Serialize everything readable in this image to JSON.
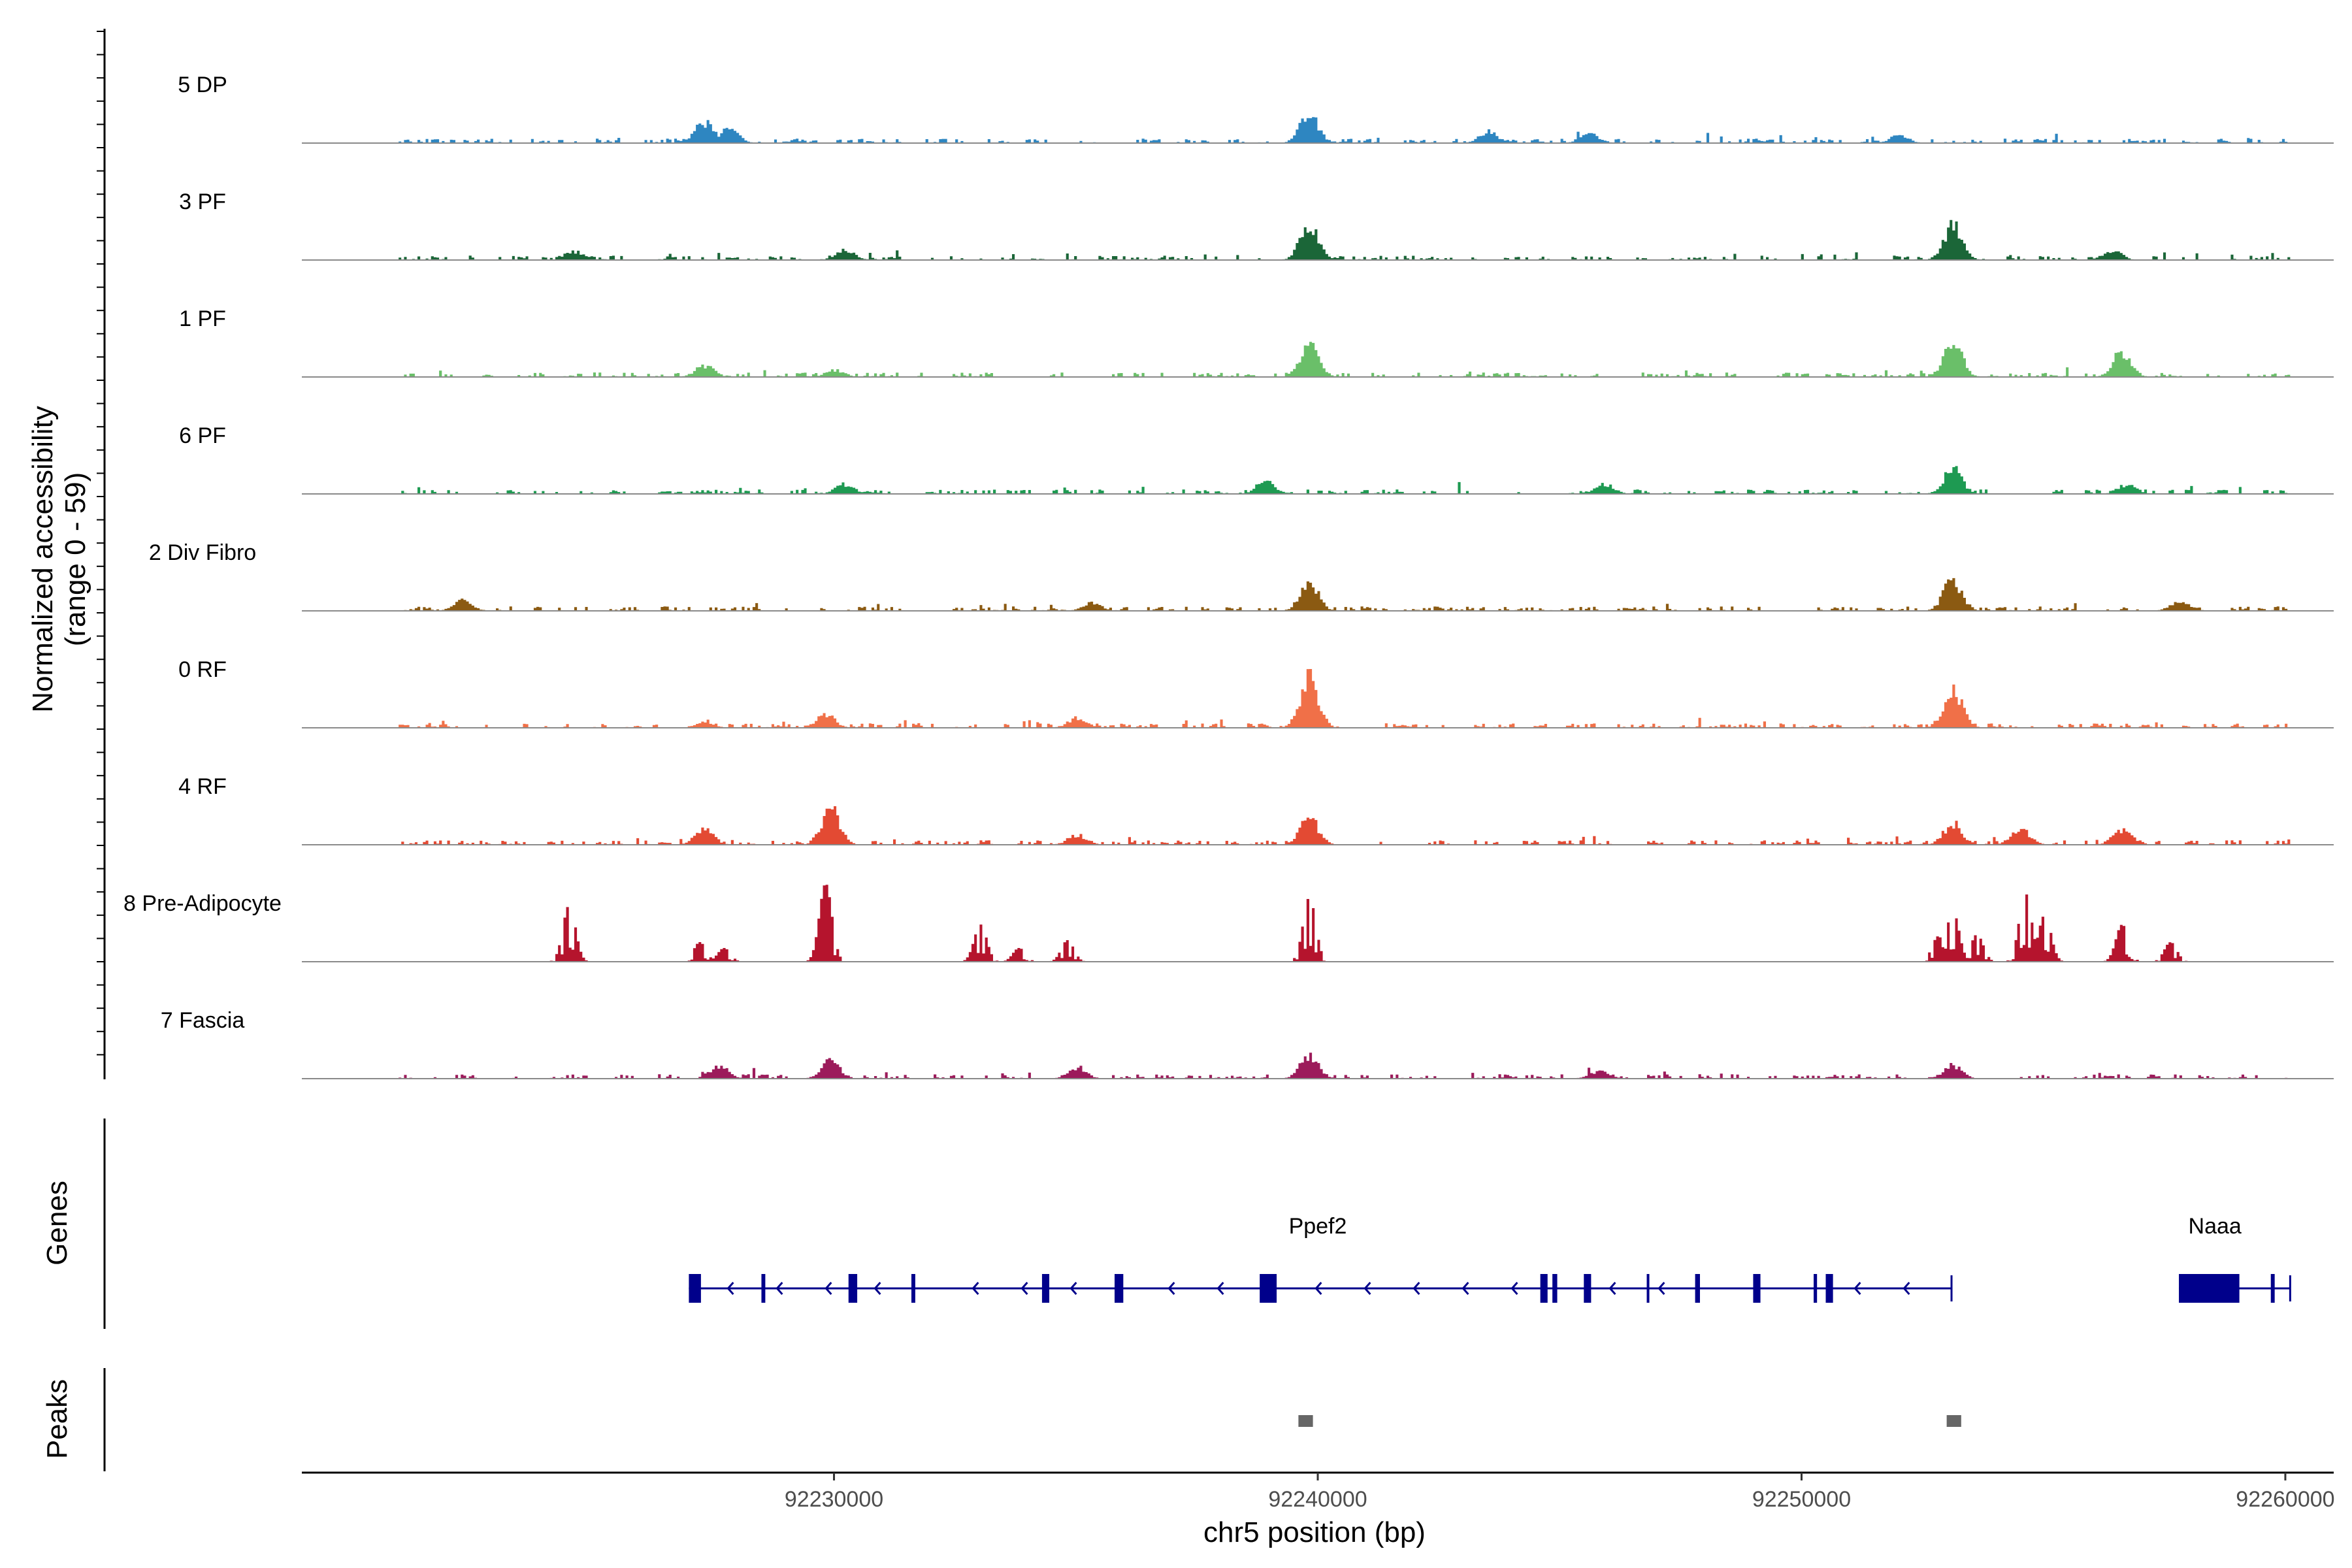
{
  "chart_data": {
    "type": "coverage-track",
    "ylabel_line1": "Normalized accessibility",
    "ylabel_line2": "(range 0 - 59)",
    "y_range": [
      0,
      59
    ],
    "xlabel": "chr5 position (bp)",
    "xlim": [
      92219000,
      92261000
    ],
    "x_ticks": [
      92230000,
      92240000,
      92250000,
      92260000
    ],
    "x_tick_labels": [
      "92230000",
      "92240000",
      "92250000",
      "92260000"
    ],
    "genes_label": "Genes",
    "peaks_label": "Peaks",
    "tracks": [
      {
        "name": "5 DP",
        "color": "#2e86c1",
        "sparse": false,
        "seed": 11,
        "peaks": [
          [
            92227300,
            0.22
          ],
          [
            92227800,
            0.15
          ],
          [
            92239800,
            0.3
          ],
          [
            92243500,
            0.12
          ],
          [
            92245600,
            0.1
          ],
          [
            92252000,
            0.08
          ]
        ]
      },
      {
        "name": "3 PF",
        "color": "#1b6638",
        "sparse": false,
        "seed": 23,
        "peaks": [
          [
            92239800,
            0.36
          ],
          [
            92253100,
            0.36
          ],
          [
            92230200,
            0.1
          ],
          [
            92256400,
            0.1
          ],
          [
            92224600,
            0.09
          ]
        ]
      },
      {
        "name": "1 PF",
        "color": "#6abf69",
        "sparse": false,
        "seed": 37,
        "peaks": [
          [
            92239800,
            0.36
          ],
          [
            92253100,
            0.36
          ],
          [
            92256600,
            0.26
          ],
          [
            92227300,
            0.12
          ],
          [
            92230000,
            0.07
          ]
        ]
      },
      {
        "name": "6 PF",
        "color": "#1e9a52",
        "sparse": false,
        "seed": 41,
        "peaks": [
          [
            92253100,
            0.26
          ],
          [
            92238900,
            0.14
          ],
          [
            92230200,
            0.1
          ],
          [
            92245900,
            0.1
          ],
          [
            92256700,
            0.1
          ]
        ]
      },
      {
        "name": "2 Div Fibro",
        "color": "#8b5a12",
        "sparse": false,
        "seed": 53,
        "peaks": [
          [
            92239800,
            0.28
          ],
          [
            92253100,
            0.32
          ],
          [
            92222300,
            0.12
          ],
          [
            92257800,
            0.1
          ],
          [
            92235300,
            0.08
          ]
        ]
      },
      {
        "name": "0 RF",
        "color": "#f07048",
        "sparse": false,
        "seed": 67,
        "peaks": [
          [
            92239800,
            0.52
          ],
          [
            92253100,
            0.42
          ],
          [
            92229800,
            0.14
          ],
          [
            92235000,
            0.1
          ],
          [
            92227300,
            0.06
          ]
        ]
      },
      {
        "name": "4 RF",
        "color": "#e34a33",
        "sparse": false,
        "seed": 71,
        "peaks": [
          [
            92229900,
            0.38
          ],
          [
            92239800,
            0.28
          ],
          [
            92227300,
            0.16
          ],
          [
            92253100,
            0.22
          ],
          [
            92254500,
            0.16
          ],
          [
            92256600,
            0.16
          ],
          [
            92235000,
            0.1
          ]
        ]
      },
      {
        "name": "8 Pre-Adipocyte",
        "color": "#b5142d",
        "sparse": true,
        "seed": 83,
        "peaks": [
          [
            92224500,
            0.58
          ],
          [
            92227200,
            0.2
          ],
          [
            92227700,
            0.14
          ],
          [
            92229800,
            0.8
          ],
          [
            92233000,
            0.38
          ],
          [
            92233800,
            0.14
          ],
          [
            92234800,
            0.22
          ],
          [
            92239800,
            0.66
          ],
          [
            92252800,
            0.26
          ],
          [
            92253100,
            0.52
          ],
          [
            92253600,
            0.28
          ],
          [
            92254600,
            0.7
          ],
          [
            92255000,
            0.48
          ],
          [
            92256600,
            0.38
          ],
          [
            92257600,
            0.2
          ]
        ]
      },
      {
        "name": "7 Fascia",
        "color": "#9c1b5b",
        "sparse": false,
        "seed": 97,
        "peaks": [
          [
            92239800,
            0.24
          ],
          [
            92229900,
            0.18
          ],
          [
            92227600,
            0.14
          ],
          [
            92253100,
            0.14
          ],
          [
            92235000,
            0.12
          ],
          [
            92245800,
            0.08
          ]
        ]
      }
    ],
    "genes": [
      {
        "name": "Ppef2",
        "color": "#00008b",
        "start": 92227000,
        "end": 92253100,
        "exons": [
          [
            92227000,
            92227250
          ],
          [
            92228500,
            92228580
          ],
          [
            92230300,
            92230480
          ],
          [
            92231600,
            92231680
          ],
          [
            92234300,
            92234450
          ],
          [
            92235800,
            92235980
          ],
          [
            92238800,
            92239150
          ],
          [
            92244600,
            92244750
          ],
          [
            92244850,
            92244950
          ],
          [
            92245500,
            92245650
          ],
          [
            92246800,
            92246850
          ],
          [
            92247800,
            92247900
          ],
          [
            92249000,
            92249150
          ],
          [
            92250250,
            92250320
          ],
          [
            92250500,
            92250650
          ]
        ],
        "strand": "-"
      },
      {
        "name": "Naaa",
        "color": "#00008b",
        "start": 92257800,
        "end": 92260100,
        "exons": [
          [
            92257800,
            92259050
          ],
          [
            92259700,
            92259780
          ]
        ],
        "strand": "-"
      }
    ],
    "peak_regions": [
      [
        92239600,
        92239900
      ],
      [
        92253000,
        92253300
      ]
    ],
    "peak_color": "#666666"
  }
}
